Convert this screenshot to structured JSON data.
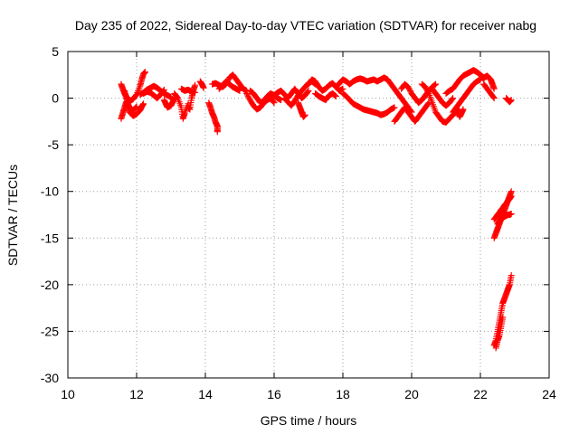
{
  "chart_data": {
    "type": "scatter",
    "title": "Day 235 of 2022, Sidereal Day-to-day VTEC variation (SDTVAR) for receiver nabg",
    "xlabel": "GPS time / hours",
    "ylabel": "SDTVAR / TECUs",
    "xlim": [
      10,
      24
    ],
    "ylim": [
      -30,
      5
    ],
    "xticks": [
      "10",
      "12",
      "14",
      "16",
      "18",
      "20",
      "22",
      "24"
    ],
    "yticks": [
      "5",
      "0",
      "-5",
      "-10",
      "-15",
      "-20",
      "-25",
      "-30"
    ],
    "grid": true,
    "marker": "+",
    "color": "#ff0000",
    "series": [
      {
        "name": "SDTVAR",
        "segments": [
          {
            "x": [
              11.55,
              11.6,
              11.65,
              11.7,
              11.8,
              11.9,
              12.0,
              12.1,
              12.15,
              12.2,
              12.25
            ],
            "y": [
              1.5,
              1.0,
              0.5,
              0.2,
              -0.3,
              -0.1,
              0.4,
              1.3,
              2.0,
              2.6,
              2.8
            ]
          },
          {
            "x": [
              11.55,
              11.6,
              11.65,
              11.7,
              11.75,
              11.8,
              11.9,
              12.0,
              12.1,
              12.15,
              12.2
            ],
            "y": [
              -2.2,
              -1.6,
              -1.0,
              -0.4,
              -0.9,
              -1.5,
              -1.9,
              -1.7,
              -1.3,
              -0.9,
              -0.6
            ]
          },
          {
            "x": [
              11.65,
              11.7,
              11.75,
              11.8,
              11.9,
              12.0
            ],
            "y": [
              0.8,
              0.0,
              -0.6,
              -1.1,
              -1.3,
              -0.9
            ]
          },
          {
            "x": [
              12.1,
              12.2,
              12.3,
              12.4,
              12.5,
              12.6,
              12.7,
              12.8,
              12.9,
              13.0
            ],
            "y": [
              0.4,
              0.6,
              0.9,
              1.1,
              1.3,
              1.1,
              0.8,
              0.5,
              0.3,
              0.1
            ]
          },
          {
            "x": [
              12.2,
              12.3,
              12.4,
              12.5,
              12.6,
              12.7,
              12.8
            ],
            "y": [
              0.5,
              0.7,
              0.6,
              0.3,
              0.0,
              0.4,
              0.9
            ]
          },
          {
            "x": [
              12.8,
              12.85,
              12.9,
              13.0,
              13.05,
              13.1
            ],
            "y": [
              -0.2,
              -0.6,
              -1.0,
              -0.8,
              -0.4,
              0.0
            ]
          },
          {
            "x": [
              13.1,
              13.2,
              13.3,
              13.35,
              13.4,
              13.5
            ],
            "y": [
              0.5,
              0.0,
              -1.0,
              -2.2,
              -1.6,
              -0.6
            ]
          },
          {
            "x": [
              13.5,
              13.55,
              13.6,
              13.65,
              13.7
            ],
            "y": [
              -1.0,
              -1.2,
              0.0,
              0.8,
              1.4
            ]
          },
          {
            "x": [
              13.3,
              13.4,
              13.5,
              13.6,
              13.7
            ],
            "y": [
              1.0,
              0.8,
              0.9,
              0.7,
              0.6
            ]
          },
          {
            "x": [
              13.85,
              13.9,
              13.95
            ],
            "y": [
              1.8,
              1.5,
              1.1
            ]
          },
          {
            "x": [
              14.1,
              14.15,
              14.2,
              14.25,
              14.3,
              14.35,
              14.35
            ],
            "y": [
              -0.5,
              -1.0,
              -1.6,
              -2.0,
              -2.6,
              -3.0,
              -3.6
            ]
          },
          {
            "x": [
              14.2,
              14.3,
              14.4,
              14.5,
              14.6,
              14.7,
              14.8,
              14.9,
              15.0,
              15.1,
              15.2
            ],
            "y": [
              1.5,
              1.6,
              1.4,
              1.2,
              1.5,
              2.2,
              2.5,
              2.0,
              1.5,
              1.0,
              0.8
            ]
          },
          {
            "x": [
              14.4,
              14.5,
              14.6,
              14.7,
              14.8,
              14.9,
              15.0
            ],
            "y": [
              1.0,
              1.4,
              1.8,
              1.5,
              1.2,
              1.0,
              0.8
            ]
          },
          {
            "x": [
              15.2,
              15.3,
              15.4,
              15.5,
              15.6,
              15.7,
              15.8,
              15.9,
              16.0
            ],
            "y": [
              0.5,
              -0.2,
              -0.8,
              -1.2,
              -1.0,
              -0.5,
              -0.2,
              0.0,
              -0.5
            ]
          },
          {
            "x": [
              15.3,
              15.4,
              15.5,
              15.6,
              15.7,
              15.8,
              15.9,
              16.0,
              16.1,
              16.2
            ],
            "y": [
              0.8,
              0.5,
              0.0,
              -0.5,
              -0.3,
              0.2,
              0.5,
              0.3,
              0.0,
              -0.2
            ]
          },
          {
            "x": [
              16.0,
              16.1,
              16.2,
              16.3,
              16.4,
              16.5,
              16.6,
              16.7,
              16.8,
              16.9,
              17.0
            ],
            "y": [
              0.3,
              0.6,
              0.8,
              0.4,
              0.0,
              0.5,
              1.0,
              0.5,
              0.0,
              0.3,
              0.8
            ]
          },
          {
            "x": [
              16.3,
              16.4,
              16.5,
              16.6,
              16.7,
              16.8,
              16.9,
              17.0,
              17.1,
              17.2
            ],
            "y": [
              0.0,
              -0.4,
              -0.8,
              -0.3,
              0.3,
              0.8,
              1.2,
              1.6,
              1.8,
              1.5
            ]
          },
          {
            "x": [
              16.7,
              16.75,
              16.8,
              16.85,
              16.9
            ],
            "y": [
              -0.5,
              -1.0,
              -1.5,
              -2.0,
              -1.8
            ]
          },
          {
            "x": [
              17.0,
              17.1,
              17.2,
              17.3,
              17.4,
              17.5,
              17.6,
              17.7,
              17.8,
              17.9,
              18.0
            ],
            "y": [
              1.5,
              2.0,
              1.8,
              1.2,
              0.8,
              1.0,
              1.4,
              1.6,
              1.2,
              0.8,
              1.0
            ]
          },
          {
            "x": [
              17.2,
              17.3,
              17.4,
              17.5,
              17.6,
              17.7,
              17.8
            ],
            "y": [
              0.5,
              0.2,
              0.0,
              -0.2,
              0.3,
              0.5,
              0.2
            ]
          },
          {
            "x": [
              17.8,
              17.9,
              18.0,
              18.1,
              18.2,
              18.3,
              18.4,
              18.5,
              18.6,
              18.7,
              18.8,
              18.9,
              19.0
            ],
            "y": [
              1.2,
              1.6,
              2.0,
              1.8,
              1.5,
              1.8,
              2.0,
              2.1,
              2.0,
              1.8,
              1.9,
              2.0,
              1.8
            ]
          },
          {
            "x": [
              18.0,
              18.1,
              18.2,
              18.3,
              18.4,
              18.5,
              18.6,
              18.7,
              18.8,
              18.9,
              19.0,
              19.1,
              19.2,
              19.3,
              19.4,
              19.5
            ],
            "y": [
              0.5,
              0.2,
              -0.2,
              -0.6,
              -0.8,
              -1.0,
              -1.2,
              -1.3,
              -1.4,
              -1.5,
              -1.6,
              -1.8,
              -1.7,
              -1.5,
              -1.2,
              -1.0
            ]
          },
          {
            "x": [
              19.0,
              19.1,
              19.2,
              19.3,
              19.4,
              19.5,
              19.6,
              19.7,
              19.8,
              19.9,
              20.0
            ],
            "y": [
              1.8,
              2.0,
              2.2,
              2.0,
              1.5,
              1.0,
              0.5,
              0.0,
              -0.5,
              -1.0,
              -1.5
            ]
          },
          {
            "x": [
              19.5,
              19.6,
              19.7,
              19.8,
              19.9,
              20.0,
              20.1,
              20.2,
              20.3,
              20.4,
              20.5
            ],
            "y": [
              -2.5,
              -2.0,
              -1.5,
              -1.0,
              -1.5,
              -2.0,
              -2.5,
              -2.0,
              -1.5,
              -1.0,
              -0.5
            ]
          },
          {
            "x": [
              19.7,
              19.8,
              19.9,
              20.0,
              20.1,
              20.2,
              20.3,
              20.4,
              20.5,
              20.6,
              20.7
            ],
            "y": [
              1.0,
              1.5,
              1.2,
              0.5,
              0.0,
              -0.5,
              -0.2,
              0.3,
              0.8,
              1.2,
              1.5
            ]
          },
          {
            "x": [
              20.3,
              20.4,
              20.5,
              20.6,
              20.7,
              20.8,
              20.9,
              21.0,
              21.1,
              21.2,
              21.3
            ],
            "y": [
              1.5,
              1.2,
              0.5,
              -0.5,
              -1.5,
              -2.0,
              -2.5,
              -2.6,
              -2.2,
              -1.8,
              -1.5
            ]
          },
          {
            "x": [
              20.6,
              20.7,
              20.8,
              20.9,
              21.0,
              21.1,
              21.2
            ],
            "y": [
              1.0,
              0.5,
              0.0,
              -0.5,
              -0.8,
              -0.5,
              0.0
            ]
          },
          {
            "x": [
              21.2,
              21.3,
              21.4,
              21.5,
              21.6,
              21.7,
              21.8,
              21.9,
              22.0
            ],
            "y": [
              -1.5,
              -1.0,
              -0.5,
              0.0,
              0.5,
              1.0,
              1.5,
              1.8,
              2.0
            ]
          },
          {
            "x": [
              21.0,
              21.1,
              21.2,
              21.3,
              21.4,
              21.5,
              21.6,
              21.7,
              21.8,
              21.9,
              22.0,
              22.1
            ],
            "y": [
              0.5,
              0.8,
              1.0,
              1.5,
              2.0,
              2.4,
              2.6,
              2.8,
              3.0,
              2.8,
              2.5,
              2.0
            ]
          },
          {
            "x": [
              21.3,
              21.35,
              21.4,
              21.45,
              21.5
            ],
            "y": [
              -1.0,
              -1.5,
              -2.0,
              -1.6,
              -1.2
            ]
          },
          {
            "x": [
              22.0,
              22.1,
              22.2,
              22.3,
              22.35,
              22.4
            ],
            "y": [
              2.5,
              2.2,
              2.4,
              2.0,
              1.5,
              1.0
            ]
          },
          {
            "x": [
              22.1,
              22.2,
              22.3,
              22.4
            ],
            "y": [
              1.5,
              1.0,
              0.5,
              0.0
            ]
          },
          {
            "x": [
              22.75,
              22.8,
              22.85,
              22.9
            ],
            "y": [
              0.0,
              -0.2,
              -0.4,
              -0.2
            ]
          },
          {
            "x": [
              22.4,
              22.45,
              22.5,
              22.55,
              22.6,
              22.65,
              22.7,
              22.75,
              22.8,
              22.85,
              22.9
            ],
            "y": [
              -15.0,
              -14.5,
              -14.0,
              -13.5,
              -13.0,
              -12.5,
              -12.0,
              -11.5,
              -11.0,
              -10.5,
              -10.0
            ]
          },
          {
            "x": [
              22.4,
              22.45,
              22.5,
              22.55,
              22.6,
              22.65,
              22.7,
              22.75,
              22.8,
              22.85,
              22.9
            ],
            "y": [
              -13.0,
              -12.8,
              -12.5,
              -12.3,
              -12.0,
              -11.8,
              -11.5,
              -11.3,
              -11.0,
              -10.8,
              -10.5
            ]
          },
          {
            "x": [
              22.5,
              22.55,
              22.6,
              22.65,
              22.7,
              22.75,
              22.8,
              22.85,
              22.9
            ],
            "y": [
              -13.5,
              -13.2,
              -13.0,
              -12.8,
              -12.7,
              -12.6,
              -12.5,
              -12.5,
              -12.4
            ]
          },
          {
            "x": [
              22.4,
              22.45,
              22.5,
              22.55,
              22.6,
              22.65,
              22.7,
              22.75,
              22.8,
              22.85,
              22.9
            ],
            "y": [
              -26.5,
              -26.0,
              -25.0,
              -24.0,
              -23.0,
              -22.0,
              -21.5,
              -21.0,
              -20.5,
              -20.0,
              -19.0
            ]
          },
          {
            "x": [
              22.45,
              22.5,
              22.55,
              22.6,
              22.65
            ],
            "y": [
              -26.8,
              -26.0,
              -25.5,
              -24.5,
              -23.5
            ]
          }
        ]
      }
    ]
  }
}
